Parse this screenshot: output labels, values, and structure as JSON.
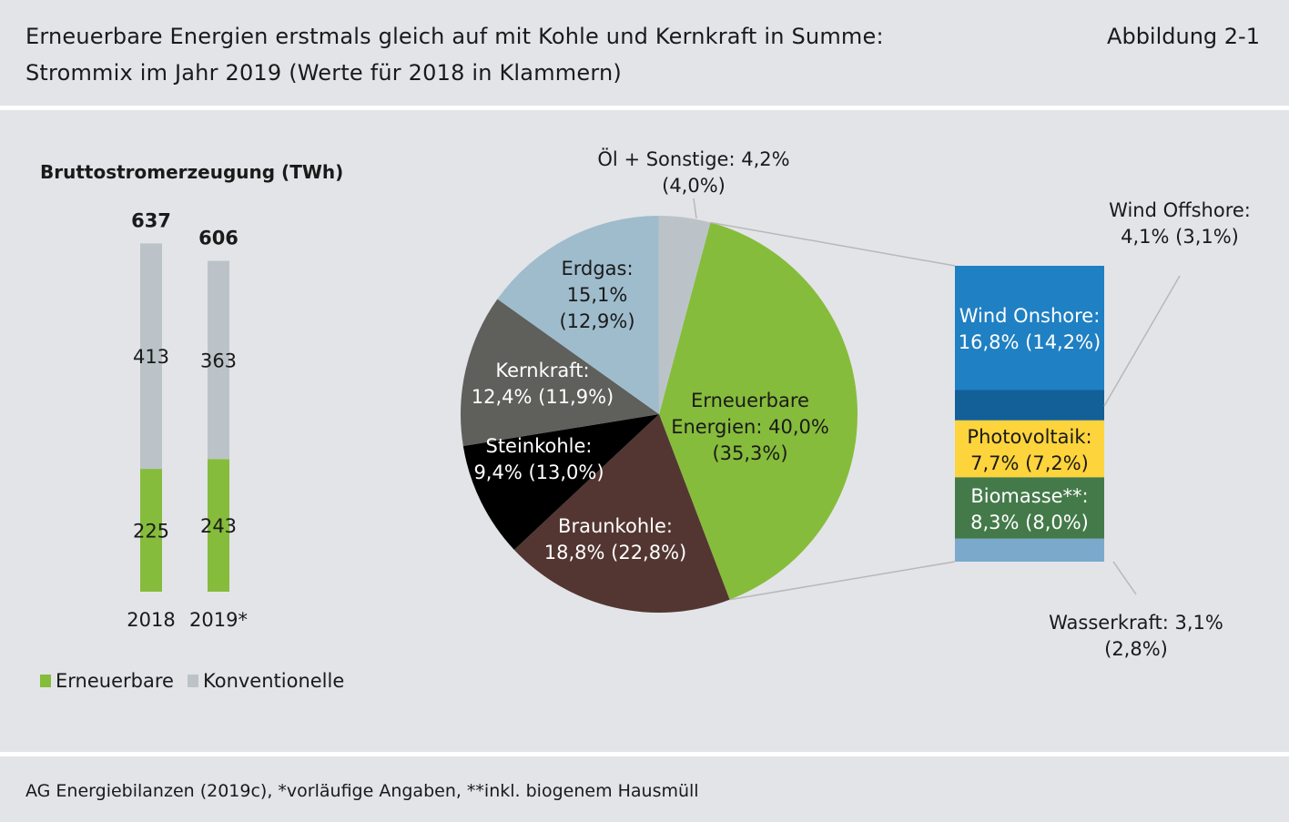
{
  "header": {
    "title_line1": "Erneuerbare Energien erstmals gleich auf mit Kohle und Kernkraft in Summe:",
    "title_line2": "Strommix im Jahr 2019 (Werte für 2018 in Klammern)",
    "figure_label": "Abbildung 2-1"
  },
  "footer": {
    "source": "AG Energiebilanzen (2019c), *vorläufige Angaben, **inkl. biogenem Hausmüll"
  },
  "colors": {
    "background": "#e3e4e8",
    "renewables_green": "#86bc3b",
    "conventional_grey": "#bcc3c8",
    "kernkraft": "#5f5f5b",
    "steinkohle": "#000000",
    "braunkohle": "#533632",
    "erdgas": "#9ebccc",
    "oel": "#bcc3c8",
    "wind_onshore": "#1f80c3",
    "wind_offshore": "#135f97",
    "photovoltaik": "#fdd43c",
    "biomasse": "#447a4a",
    "wasserkraft": "#7aa9cc"
  },
  "chart_data": [
    {
      "type": "bar",
      "stacked": true,
      "title": "Bruttostromerzeugung (TWh)",
      "categories": [
        "2018",
        "2019*"
      ],
      "totals": [
        "637",
        "606"
      ],
      "series": [
        {
          "name": "Erneuerbare",
          "values": [
            225,
            243
          ],
          "labels": [
            "225",
            "243"
          ],
          "color": "#86bc3b"
        },
        {
          "name": "Konventionelle",
          "values": [
            413,
            363
          ],
          "labels": [
            "413",
            "363"
          ],
          "color": "#bcc3c8"
        }
      ],
      "legend": [
        "Erneuerbare",
        "Konventionelle"
      ],
      "legend_position": "bottom-left"
    },
    {
      "type": "pie",
      "slices": [
        {
          "name": "Erneuerbare Energien",
          "value": 40.0,
          "prev": 35.3,
          "label_lines": [
            "Erneuerbare",
            "Energien: 40,0%",
            "(35,3%)"
          ],
          "color": "#86bc3b"
        },
        {
          "name": "Braunkohle",
          "value": 18.8,
          "prev": 22.8,
          "label_lines": [
            "Braunkohle:",
            "18,8% (22,8%)"
          ],
          "color": "#533632"
        },
        {
          "name": "Steinkohle",
          "value": 9.4,
          "prev": 13.0,
          "label_lines": [
            "Steinkohle:",
            "9,4% (13,0%)"
          ],
          "color": "#000000"
        },
        {
          "name": "Kernkraft",
          "value": 12.4,
          "prev": 11.9,
          "label_lines": [
            "Kernkraft:",
            "12,4% (11,9%)"
          ],
          "color": "#5f5f5b"
        },
        {
          "name": "Erdgas",
          "value": 15.1,
          "prev": 12.9,
          "label_lines": [
            "Erdgas:",
            "15,1%",
            "(12,9%)"
          ],
          "color": "#9ebccc"
        },
        {
          "name": "Öl + Sonstige",
          "value": 4.2,
          "prev": 4.0,
          "label_lines": [
            "Öl + Sonstige: 4,2%",
            "(4,0%)"
          ],
          "color": "#bcc3c8"
        }
      ]
    },
    {
      "type": "bar",
      "stacked": true,
      "description_of": "Erneuerbare Energien breakdown",
      "segments": [
        {
          "name": "Wind Onshore",
          "value": 16.8,
          "prev": 14.2,
          "label_lines": [
            "Wind Onshore:",
            "16,8% (14,2%)"
          ],
          "color": "#1f80c3"
        },
        {
          "name": "Wind Offshore",
          "value": 4.1,
          "prev": 3.1,
          "label_lines": [
            "Wind Offshore:",
            "4,1% (3,1%)"
          ],
          "color": "#135f97"
        },
        {
          "name": "Photovoltaik",
          "value": 7.7,
          "prev": 7.2,
          "label_lines": [
            "Photovoltaik:",
            "7,7% (7,2%)"
          ],
          "color": "#fdd43c"
        },
        {
          "name": "Biomasse**",
          "value": 8.3,
          "prev": 8.0,
          "label_lines": [
            "Biomasse**:",
            "8,3% (8,0%)"
          ],
          "color": "#447a4a"
        },
        {
          "name": "Wasserkraft",
          "value": 3.1,
          "prev": 2.8,
          "label_lines": [
            "Wasserkraft: 3,1%",
            "(2,8%)"
          ],
          "color": "#7aa9cc"
        }
      ]
    }
  ]
}
